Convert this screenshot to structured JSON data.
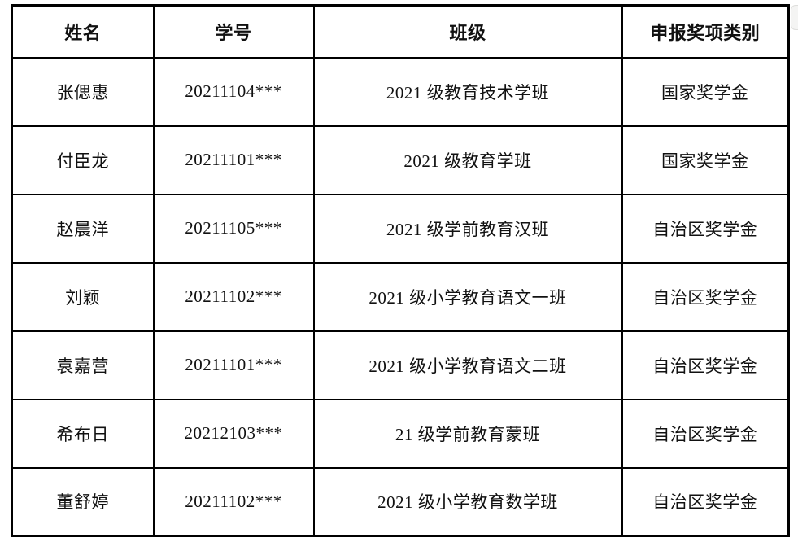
{
  "page": {
    "background_color": "#ffffff",
    "border_color": "#000000",
    "text_color": "#111111"
  },
  "table": {
    "columns": [
      {
        "key": "name",
        "label": "姓名"
      },
      {
        "key": "student_id",
        "label": "学号"
      },
      {
        "key": "class",
        "label": "班级"
      },
      {
        "key": "award",
        "label": "申报奖项类别"
      }
    ],
    "rows": [
      {
        "name": "张偲惠",
        "student_id": "20211104***",
        "class": "2021 级教育技术学班",
        "award": "国家奖学金"
      },
      {
        "name": "付臣龙",
        "student_id": "20211101***",
        "class": "2021 级教育学班",
        "award": "国家奖学金"
      },
      {
        "name": "赵晨洋",
        "student_id": "20211105***",
        "class": "2021 级学前教育汉班",
        "award": "自治区奖学金"
      },
      {
        "name": "刘颖",
        "student_id": "20211102***",
        "class": "2021 级小学教育语文一班",
        "award": "自治区奖学金"
      },
      {
        "name": "袁嘉营",
        "student_id": "20211101***",
        "class": "2021 级小学教育语文二班",
        "award": "自治区奖学金"
      },
      {
        "name": "希布日",
        "student_id": "20212103***",
        "class": "21 级学前教育蒙班",
        "award": "自治区奖学金"
      },
      {
        "name": "董舒婷",
        "student_id": "20211102***",
        "class": "2021 级小学教育数学班",
        "award": "自治区奖学金"
      }
    ]
  },
  "scrollbar": {
    "visible": true
  }
}
